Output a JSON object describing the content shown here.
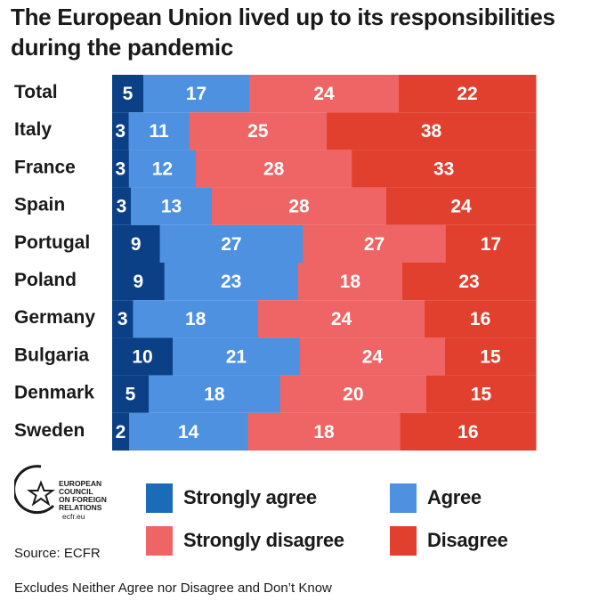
{
  "title": "The European Union lived up to its responsibilities during the pandemic",
  "source": "Source: ECFR",
  "footnote": "Excludes Neither Agree nor Disagree and Don’t Know",
  "logo": {
    "lines": [
      "EUROPEAN",
      "COUNCIL",
      "ON FOREIGN",
      "RELATIONS"
    ],
    "url": "ecfr.eu"
  },
  "colors": {
    "strongly_agree": "#0b3f86",
    "agree": "#4d91e0",
    "strongly_disagree": "#ef6464",
    "disagree": "#e2402f"
  },
  "legend": [
    {
      "key": "strongly_agree",
      "label": "Strongly agree",
      "color": "#1a6cb8"
    },
    {
      "key": "agree",
      "label": "Agree",
      "color": "#4d91e0"
    },
    {
      "key": "strongly_disagree",
      "label": "Strongly disagree",
      "color": "#ef6464"
    },
    {
      "key": "disagree",
      "label": "Disagree",
      "color": "#e2402f"
    }
  ],
  "chart_data": {
    "type": "bar",
    "orientation": "horizontal",
    "stacked": true,
    "categories": [
      "Total",
      "Italy",
      "France",
      "Spain",
      "Portugal",
      "Poland",
      "Germany",
      "Bulgaria",
      "Denmark",
      "Sweden"
    ],
    "series": [
      {
        "name": "Strongly agree",
        "values": [
          5,
          3,
          3,
          3,
          9,
          9,
          3,
          10,
          5,
          2
        ]
      },
      {
        "name": "Agree",
        "values": [
          17,
          11,
          12,
          13,
          27,
          23,
          18,
          21,
          18,
          14
        ]
      },
      {
        "name": "Strongly disagree",
        "values": [
          24,
          25,
          28,
          28,
          27,
          18,
          24,
          24,
          20,
          18
        ]
      },
      {
        "name": "Disagree",
        "values": [
          22,
          38,
          33,
          24,
          17,
          23,
          16,
          15,
          15,
          16
        ]
      }
    ]
  }
}
